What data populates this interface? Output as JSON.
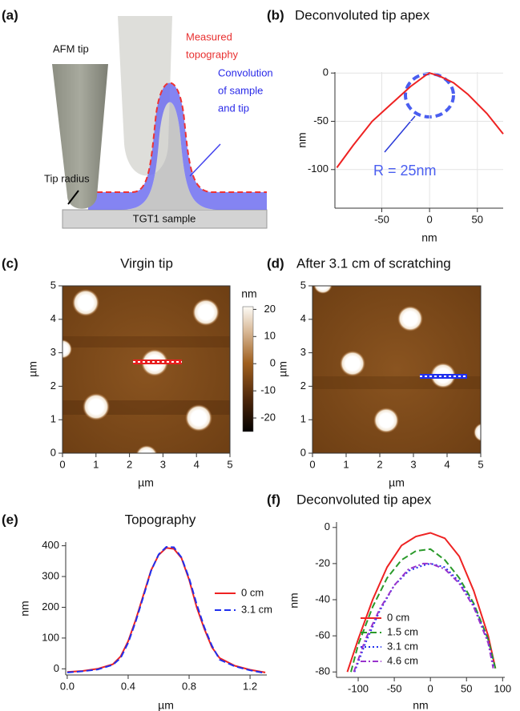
{
  "diagram": {
    "panel": "(a)",
    "tip": "AFM tip",
    "measured": [
      "Measured",
      "topography"
    ],
    "convolution": [
      "Convolution",
      "of sample",
      "and tip"
    ],
    "radius": "Tip radius",
    "sample": "TGT1 sample"
  },
  "chart_data": [
    {
      "type": "line",
      "panel": "(b)",
      "title": "Deconvoluted tip apex",
      "xlabel": "nm",
      "ylabel": "nm",
      "annotation": "R = 25nm",
      "grid": true,
      "xlim": [
        -99,
        77
      ],
      "ylim": [
        -140,
        1
      ],
      "xticks": [
        -50,
        0,
        50
      ],
      "yticks": [
        0,
        -50,
        -100
      ],
      "series": [
        {
          "color": "#ee2222",
          "dash": "solid",
          "x": [
            -97,
            -80,
            -60,
            -40,
            -20,
            -5,
            0,
            10,
            25,
            40,
            60,
            77
          ],
          "values": [
            -98,
            -75,
            -50,
            -32,
            -14,
            -3,
            0,
            -3,
            -10,
            -22,
            -42,
            -63
          ]
        }
      ]
    },
    {
      "type": "image",
      "panel": "(c)",
      "title": "Virgin tip",
      "xlabel": "µm",
      "ylabel": "µm",
      "xlim": [
        0,
        5
      ],
      "ylim": [
        0,
        5
      ],
      "xticks": [
        0,
        1,
        2,
        3,
        4,
        5
      ],
      "yticks": [
        0,
        1,
        2,
        3,
        4,
        5
      ],
      "colorbar": {
        "label": "nm",
        "lim": [
          -25,
          21
        ],
        "ticks": [
          20,
          10,
          0,
          -10,
          -20
        ]
      }
    },
    {
      "type": "image",
      "panel": "(d)",
      "title": "After 3.1 cm of scratching",
      "xlabel": "µm",
      "ylabel": "µm",
      "xlim": [
        0,
        5
      ],
      "ylim": [
        0,
        5
      ],
      "xticks": [
        0,
        1,
        2,
        3,
        4,
        5
      ],
      "yticks": [
        0,
        1,
        2,
        3,
        4,
        5
      ]
    },
    {
      "type": "line",
      "panel": "(e)",
      "title": "Topography",
      "xlabel": "µm",
      "ylabel": "nm",
      "grid": false,
      "xlim": [
        -0.01,
        1.31
      ],
      "ylim": [
        -20,
        412
      ],
      "xticks": [
        {
          "value": 0,
          "label": "0.0"
        },
        {
          "value": 0.4,
          "label": "0.4"
        },
        {
          "value": 0.8,
          "label": "0.8"
        },
        {
          "value": 1.2,
          "label": "1.2"
        }
      ],
      "yticks": [
        0,
        100,
        200,
        300,
        400
      ],
      "series": [
        {
          "name": "0 cm",
          "color": "#ee2222",
          "dash": "solid",
          "x": [
            0,
            0.1,
            0.2,
            0.3,
            0.35,
            0.4,
            0.45,
            0.5,
            0.55,
            0.6,
            0.65,
            0.7,
            0.75,
            0.8,
            0.85,
            0.9,
            0.95,
            1.0,
            1.1,
            1.2,
            1.3
          ],
          "values": [
            -10,
            -7,
            0,
            15,
            40,
            90,
            160,
            240,
            320,
            370,
            393,
            390,
            360,
            290,
            200,
            130,
            70,
            35,
            10,
            -3,
            -12
          ]
        },
        {
          "name": "3.1 cm",
          "color": "#1f2fee",
          "dash": "dashed",
          "x": [
            0,
            0.1,
            0.2,
            0.3,
            0.35,
            0.4,
            0.45,
            0.5,
            0.55,
            0.6,
            0.65,
            0.7,
            0.75,
            0.8,
            0.85,
            0.9,
            0.95,
            1.0,
            1.1,
            1.2,
            1.3
          ],
          "values": [
            -12,
            -8,
            -2,
            13,
            35,
            85,
            155,
            235,
            318,
            372,
            396,
            395,
            362,
            295,
            210,
            135,
            75,
            30,
            8,
            -5,
            -14
          ]
        }
      ]
    },
    {
      "type": "line",
      "panel": "(f)",
      "title": "Deconvoluted tip apex",
      "xlabel": "nm",
      "ylabel": "nm",
      "grid": false,
      "xlim": [
        -130,
        103
      ],
      "ylim": [
        -83,
        3
      ],
      "xticks": [
        -100,
        -50,
        0,
        50,
        100
      ],
      "yticks": [
        0,
        -20,
        -40,
        -60,
        -80
      ],
      "series": [
        {
          "name": "0 cm",
          "color": "#ee2222",
          "dash": "solid",
          "x": [
            -115,
            -100,
            -80,
            -60,
            -40,
            -20,
            0,
            20,
            40,
            60,
            80,
            90
          ],
          "values": [
            -80,
            -62,
            -40,
            -22,
            -10,
            -5,
            -3,
            -6,
            -16,
            -35,
            -60,
            -78
          ]
        },
        {
          "name": "1.5 cm",
          "color": "#2a9a2a",
          "dash": "dashed",
          "x": [
            -110,
            -100,
            -80,
            -60,
            -40,
            -20,
            0,
            20,
            40,
            60,
            80,
            90
          ],
          "values": [
            -80,
            -65,
            -44,
            -28,
            -18,
            -13,
            -12,
            -18,
            -28,
            -42,
            -62,
            -78
          ]
        },
        {
          "name": "3.1 cm",
          "color": "#1f2fee",
          "dash": "dotted",
          "x": [
            -105,
            -90,
            -70,
            -50,
            -30,
            -10,
            0,
            20,
            40,
            60,
            80,
            88
          ],
          "values": [
            -80,
            -64,
            -46,
            -32,
            -24,
            -21,
            -20,
            -22,
            -30,
            -43,
            -63,
            -78
          ]
        },
        {
          "name": "4.6 cm",
          "color": "#9933cc",
          "dash": "dashdot",
          "x": [
            -106,
            -90,
            -70,
            -50,
            -30,
            -10,
            0,
            20,
            40,
            60,
            80,
            87
          ],
          "values": [
            -80,
            -62,
            -45,
            -32,
            -23,
            -20,
            -20,
            -23,
            -31,
            -44,
            -64,
            -78
          ]
        }
      ]
    }
  ]
}
